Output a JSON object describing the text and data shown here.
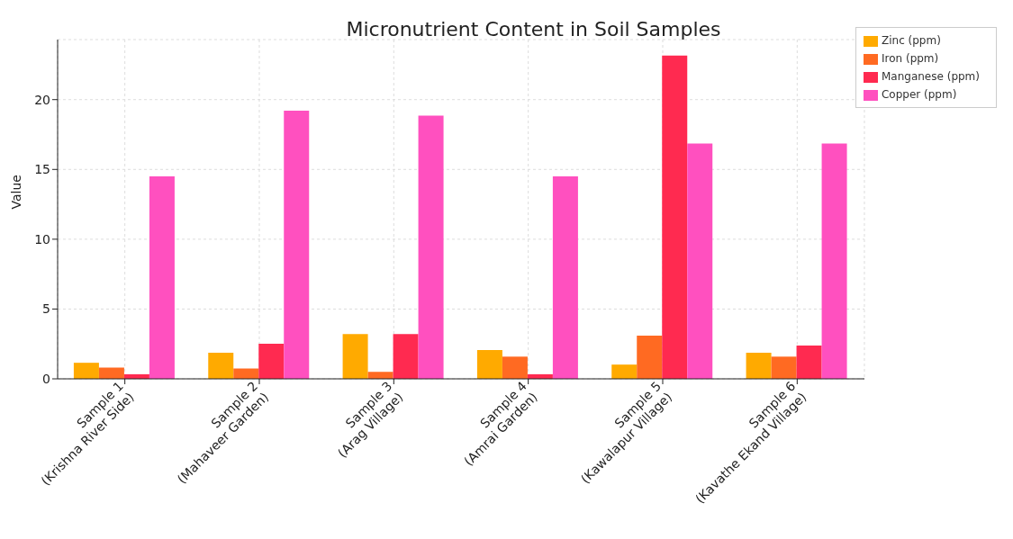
{
  "chart_data": {
    "type": "bar",
    "title": "Micronutrient Content in Soil Samples",
    "ylabel": "Value",
    "categories": [
      "Sample 1\n(Krishna River Side)",
      "Sample 2\n(Mahaveer Garden)",
      "Sample 3\n(Arag Village)",
      "Sample 4\n(Amrai Garden)",
      "Sample 5\n(Kawalapur Village)",
      "Sample 6\n(Kavathe Ekand Village)"
    ],
    "series": [
      {
        "name": "Zinc (ppm)",
        "color": "#ffaa00",
        "values": [
          1.15,
          1.87,
          3.2,
          2.07,
          1.02,
          1.87
        ]
      },
      {
        "name": "Iron (ppm)",
        "color": "#ff6a22",
        "values": [
          0.8,
          0.74,
          0.5,
          1.59,
          3.1,
          1.59
        ]
      },
      {
        "name": "Manganese (ppm)",
        "color": "#ff2a50",
        "values": [
          0.33,
          2.52,
          3.2,
          0.33,
          23.15,
          2.39
        ]
      },
      {
        "name": "Copper (ppm)",
        "color": "#ff50bf",
        "values": [
          14.5,
          19.2,
          18.85,
          14.5,
          16.85,
          16.85
        ]
      }
    ],
    "ylim": [
      0,
      24.3
    ],
    "yticks": [
      0,
      5,
      10,
      15,
      20
    ],
    "grid": true,
    "legend": "top right"
  }
}
